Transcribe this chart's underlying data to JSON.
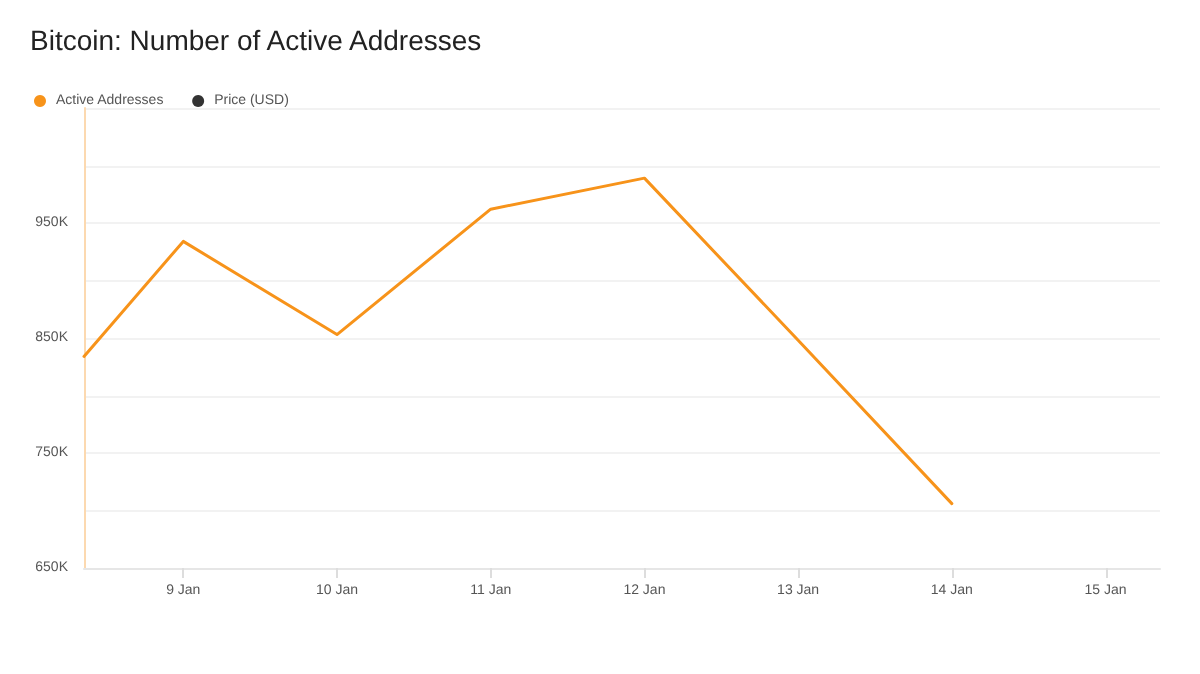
{
  "chart_data": {
    "type": "line",
    "title": "Bitcoin: Number of Active Addresses",
    "x": [
      "--01-08T08:30",
      "--01-09",
      "--01-10",
      "--01-11",
      "--01-12",
      "--01-13",
      "--01-14"
    ],
    "series": [
      {
        "name": "Active Addresses",
        "color": "#f7931a",
        "values": [
          834000,
          934000,
          853000,
          962000,
          989000,
          848000,
          706000
        ]
      },
      {
        "name": "Price (USD)",
        "color": "#333333",
        "values": [
          null,
          null,
          null,
          null,
          null,
          null,
          null
        ]
      }
    ],
    "xlim": [
      "--01-08T08:30",
      "--01-15T08:30"
    ],
    "xticks": [
      {
        "value": "--01-09",
        "label": "9 Jan"
      },
      {
        "value": "--01-10",
        "label": "10 Jan"
      },
      {
        "value": "--01-11",
        "label": "11 Jan"
      },
      {
        "value": "--01-12",
        "label": "12 Jan"
      },
      {
        "value": "--01-13",
        "label": "13 Jan"
      },
      {
        "value": "--01-14",
        "label": "14 Jan"
      },
      {
        "value": "--01-15",
        "label": "15 Jan"
      }
    ],
    "ylim": [
      650000,
      1050000
    ],
    "yticks": [
      {
        "value": 650000,
        "label": "650K"
      },
      {
        "value": 700000,
        "label": null
      },
      {
        "value": 750000,
        "label": "750K"
      },
      {
        "value": 800000,
        "label": null
      },
      {
        "value": 850000,
        "label": "850K"
      },
      {
        "value": 900000,
        "label": null
      },
      {
        "value": 950000,
        "label": "950K"
      },
      {
        "value": 1000000,
        "label": null
      },
      {
        "value": 1050000,
        "label": null
      }
    ],
    "grid": "y",
    "legend": "top left",
    "marker": "none",
    "line_style": "solid"
  }
}
